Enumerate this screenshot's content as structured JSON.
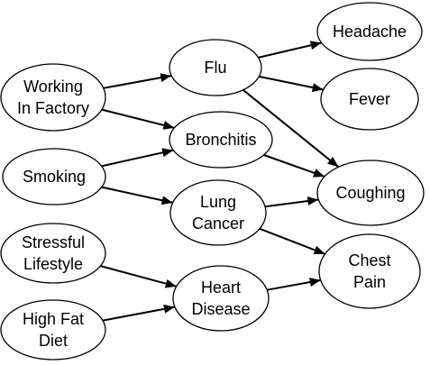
{
  "nodes": [
    {
      "id": "working",
      "lines": [
        "Working",
        "In Factory"
      ]
    },
    {
      "id": "smoking",
      "lines": [
        "Smoking"
      ]
    },
    {
      "id": "stressful",
      "lines": [
        "Stressful",
        "Lifestyle"
      ]
    },
    {
      "id": "highfat",
      "lines": [
        "High Fat",
        "Diet"
      ]
    },
    {
      "id": "flu",
      "lines": [
        "Flu"
      ]
    },
    {
      "id": "bronchitis",
      "lines": [
        "Bronchitis"
      ]
    },
    {
      "id": "lungcancer",
      "lines": [
        "Lung",
        "Cancer"
      ]
    },
    {
      "id": "heartdisease",
      "lines": [
        "Heart",
        "Disease"
      ]
    },
    {
      "id": "headache",
      "lines": [
        "Headache"
      ]
    },
    {
      "id": "fever",
      "lines": [
        "Fever"
      ]
    },
    {
      "id": "coughing",
      "lines": [
        "Coughing"
      ]
    },
    {
      "id": "chestpain",
      "lines": [
        "Chest",
        "Pain"
      ]
    }
  ],
  "edges": [
    {
      "from": "working",
      "to": "flu"
    },
    {
      "from": "working",
      "to": "bronchitis"
    },
    {
      "from": "smoking",
      "to": "bronchitis"
    },
    {
      "from": "smoking",
      "to": "lungcancer"
    },
    {
      "from": "stressful",
      "to": "heartdisease"
    },
    {
      "from": "highfat",
      "to": "heartdisease"
    },
    {
      "from": "flu",
      "to": "headache"
    },
    {
      "from": "flu",
      "to": "fever"
    },
    {
      "from": "flu",
      "to": "coughing"
    },
    {
      "from": "bronchitis",
      "to": "coughing"
    },
    {
      "from": "lungcancer",
      "to": "coughing"
    },
    {
      "from": "lungcancer",
      "to": "chestpain"
    },
    {
      "from": "heartdisease",
      "to": "chestpain"
    }
  ]
}
